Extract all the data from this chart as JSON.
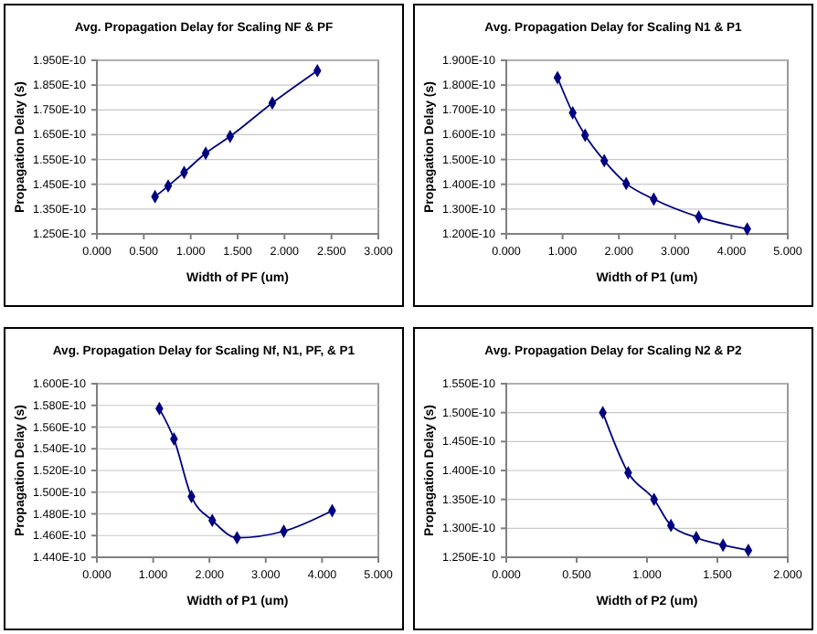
{
  "chart_data": [
    {
      "type": "line",
      "title": "Avg. Propagation Delay for Scaling NF & PF",
      "xlabel": "Width of PF (um)",
      "ylabel": "Propagation Delay (s)",
      "marker": "diamond",
      "grid": "y",
      "series": [
        {
          "color": "#000080",
          "x": [
            0.62,
            0.76,
            0.93,
            1.16,
            1.42,
            1.87,
            2.35
          ],
          "values": [
            1.4e-10,
            1.443e-10,
            1.498e-10,
            1.575e-10,
            1.643e-10,
            1.778e-10,
            1.908e-10
          ]
        }
      ],
      "xlim": [
        0,
        3
      ],
      "xticks": [
        {
          "value": 0,
          "label": "0.000"
        },
        {
          "value": 0.5,
          "label": "0.500"
        },
        {
          "value": 1,
          "label": "1.000"
        },
        {
          "value": 1.5,
          "label": "1.500"
        },
        {
          "value": 2,
          "label": "2.000"
        },
        {
          "value": 2.5,
          "label": "2.500"
        },
        {
          "value": 3,
          "label": "3.000"
        }
      ],
      "ylim": [
        1.25e-10,
        1.95e-10
      ],
      "yticks": [
        {
          "value": 1.25e-10,
          "label": "1.250E-10"
        },
        {
          "value": 1.35e-10,
          "label": "1.350E-10"
        },
        {
          "value": 1.45e-10,
          "label": "1.450E-10"
        },
        {
          "value": 1.55e-10,
          "label": "1.550E-10"
        },
        {
          "value": 1.65e-10,
          "label": "1.650E-10"
        },
        {
          "value": 1.75e-10,
          "label": "1.750E-10"
        },
        {
          "value": 1.85e-10,
          "label": "1.850E-10"
        },
        {
          "value": 1.95e-10,
          "label": "1.950E-10"
        }
      ]
    },
    {
      "type": "line",
      "title": "Avg. Propagation Delay for Scaling N1 & P1",
      "xlabel": "Width of P1 (um)",
      "ylabel": "Propagation Delay (s)",
      "marker": "diamond",
      "grid": "y",
      "series": [
        {
          "color": "#000080",
          "x": [
            0.91,
            1.18,
            1.4,
            1.74,
            2.13,
            2.62,
            3.42,
            4.28
          ],
          "values": [
            1.83e-10,
            1.688e-10,
            1.598e-10,
            1.495e-10,
            1.403e-10,
            1.34e-10,
            1.268e-10,
            1.22e-10
          ]
        }
      ],
      "xlim": [
        0,
        5
      ],
      "xticks": [
        {
          "value": 0,
          "label": "0.000"
        },
        {
          "value": 1,
          "label": "1.000"
        },
        {
          "value": 2,
          "label": "2.000"
        },
        {
          "value": 3,
          "label": "3.000"
        },
        {
          "value": 4,
          "label": "4.000"
        },
        {
          "value": 5,
          "label": "5.000"
        }
      ],
      "ylim": [
        1.2e-10,
        1.9e-10
      ],
      "yticks": [
        {
          "value": 1.2e-10,
          "label": "1.200E-10"
        },
        {
          "value": 1.3e-10,
          "label": "1.300E-10"
        },
        {
          "value": 1.4e-10,
          "label": "1.400E-10"
        },
        {
          "value": 1.5e-10,
          "label": "1.500E-10"
        },
        {
          "value": 1.6e-10,
          "label": "1.600E-10"
        },
        {
          "value": 1.7e-10,
          "label": "1.700E-10"
        },
        {
          "value": 1.8e-10,
          "label": "1.800E-10"
        },
        {
          "value": 1.9e-10,
          "label": "1.900E-10"
        }
      ]
    },
    {
      "type": "line",
      "title": "Avg. Propagation Delay for Scaling Nf, N1, PF, & P1",
      "xlabel": "Width of P1 (um)",
      "ylabel": "Propagation Delay (s)",
      "marker": "diamond",
      "grid": "y",
      "series": [
        {
          "color": "#000080",
          "x": [
            1.11,
            1.37,
            1.68,
            2.05,
            2.49,
            3.32,
            4.18
          ],
          "values": [
            1.577e-10,
            1.549e-10,
            1.496e-10,
            1.474e-10,
            1.458e-10,
            1.464e-10,
            1.483e-10
          ]
        }
      ],
      "xlim": [
        0,
        5
      ],
      "xticks": [
        {
          "value": 0,
          "label": "0.000"
        },
        {
          "value": 1,
          "label": "1.000"
        },
        {
          "value": 2,
          "label": "2.000"
        },
        {
          "value": 3,
          "label": "3.000"
        },
        {
          "value": 4,
          "label": "4.000"
        },
        {
          "value": 5,
          "label": "5.000"
        }
      ],
      "ylim": [
        1.44e-10,
        1.6e-10
      ],
      "yticks": [
        {
          "value": 1.44e-10,
          "label": "1.440E-10"
        },
        {
          "value": 1.46e-10,
          "label": "1.460E-10"
        },
        {
          "value": 1.48e-10,
          "label": "1.480E-10"
        },
        {
          "value": 1.5e-10,
          "label": "1.500E-10"
        },
        {
          "value": 1.52e-10,
          "label": "1.520E-10"
        },
        {
          "value": 1.54e-10,
          "label": "1.540E-10"
        },
        {
          "value": 1.56e-10,
          "label": "1.560E-10"
        },
        {
          "value": 1.58e-10,
          "label": "1.580E-10"
        },
        {
          "value": 1.6e-10,
          "label": "1.600E-10"
        }
      ]
    },
    {
      "type": "line",
      "title": "Avg. Propagation Delay for Scaling N2 & P2",
      "xlabel": "Width of P2 (um)",
      "ylabel": "Propagation Delay (s)",
      "marker": "diamond",
      "grid": "y",
      "series": [
        {
          "color": "#000080",
          "x": [
            0.686,
            0.866,
            1.05,
            1.17,
            1.35,
            1.54,
            1.72
          ],
          "values": [
            1.5e-10,
            1.396e-10,
            1.35e-10,
            1.305e-10,
            1.284e-10,
            1.271e-10,
            1.262e-10
          ]
        }
      ],
      "xlim": [
        0,
        2
      ],
      "xticks": [
        {
          "value": 0,
          "label": "0.000"
        },
        {
          "value": 0.5,
          "label": "0.500"
        },
        {
          "value": 1,
          "label": "1.000"
        },
        {
          "value": 1.5,
          "label": "1.500"
        },
        {
          "value": 2,
          "label": "2.000"
        }
      ],
      "ylim": [
        1.25e-10,
        1.55e-10
      ],
      "yticks": [
        {
          "value": 1.25e-10,
          "label": "1.250E-10"
        },
        {
          "value": 1.3e-10,
          "label": "1.300E-10"
        },
        {
          "value": 1.35e-10,
          "label": "1.350E-10"
        },
        {
          "value": 1.4e-10,
          "label": "1.400E-10"
        },
        {
          "value": 1.45e-10,
          "label": "1.450E-10"
        },
        {
          "value": 1.5e-10,
          "label": "1.500E-10"
        },
        {
          "value": 1.55e-10,
          "label": "1.550E-10"
        }
      ]
    }
  ]
}
